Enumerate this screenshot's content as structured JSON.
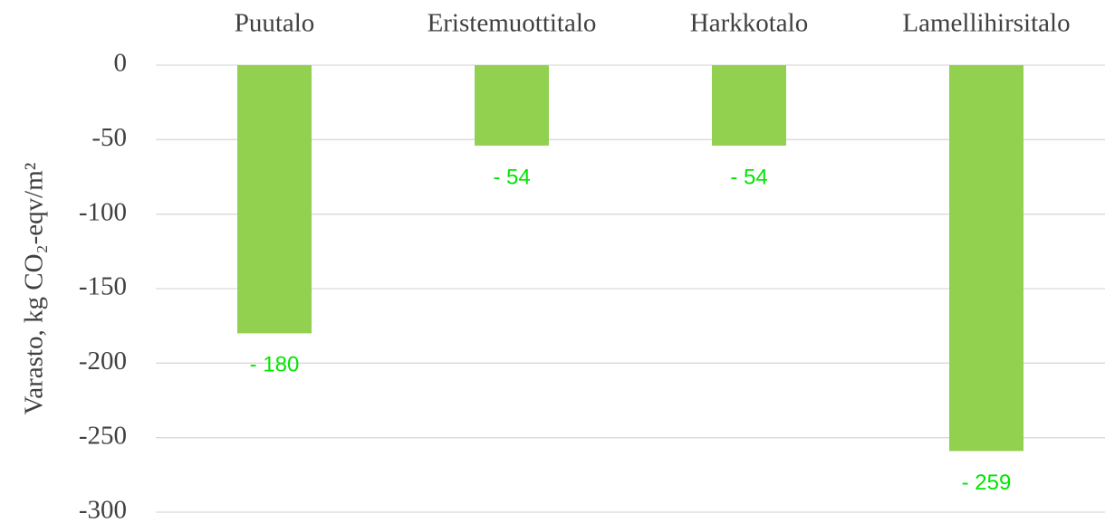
{
  "chart_data": {
    "type": "bar",
    "ylabel": "Varasto, kg CO₂-eqv/m²",
    "categories": [
      "Puutalo",
      "Eristemuottitalo",
      "Harkkotalo",
      "Lamellihirsitalo"
    ],
    "values": [
      -180,
      -54,
      -54,
      -259
    ],
    "value_labels": [
      "- 180",
      "- 54",
      "- 54",
      "- 259"
    ],
    "color": "#92d050",
    "label_color": "#00e600",
    "ylim": [
      -300,
      0
    ],
    "yticks": [
      0,
      -50,
      -100,
      -150,
      -200,
      -250,
      -300
    ],
    "grid": true
  }
}
